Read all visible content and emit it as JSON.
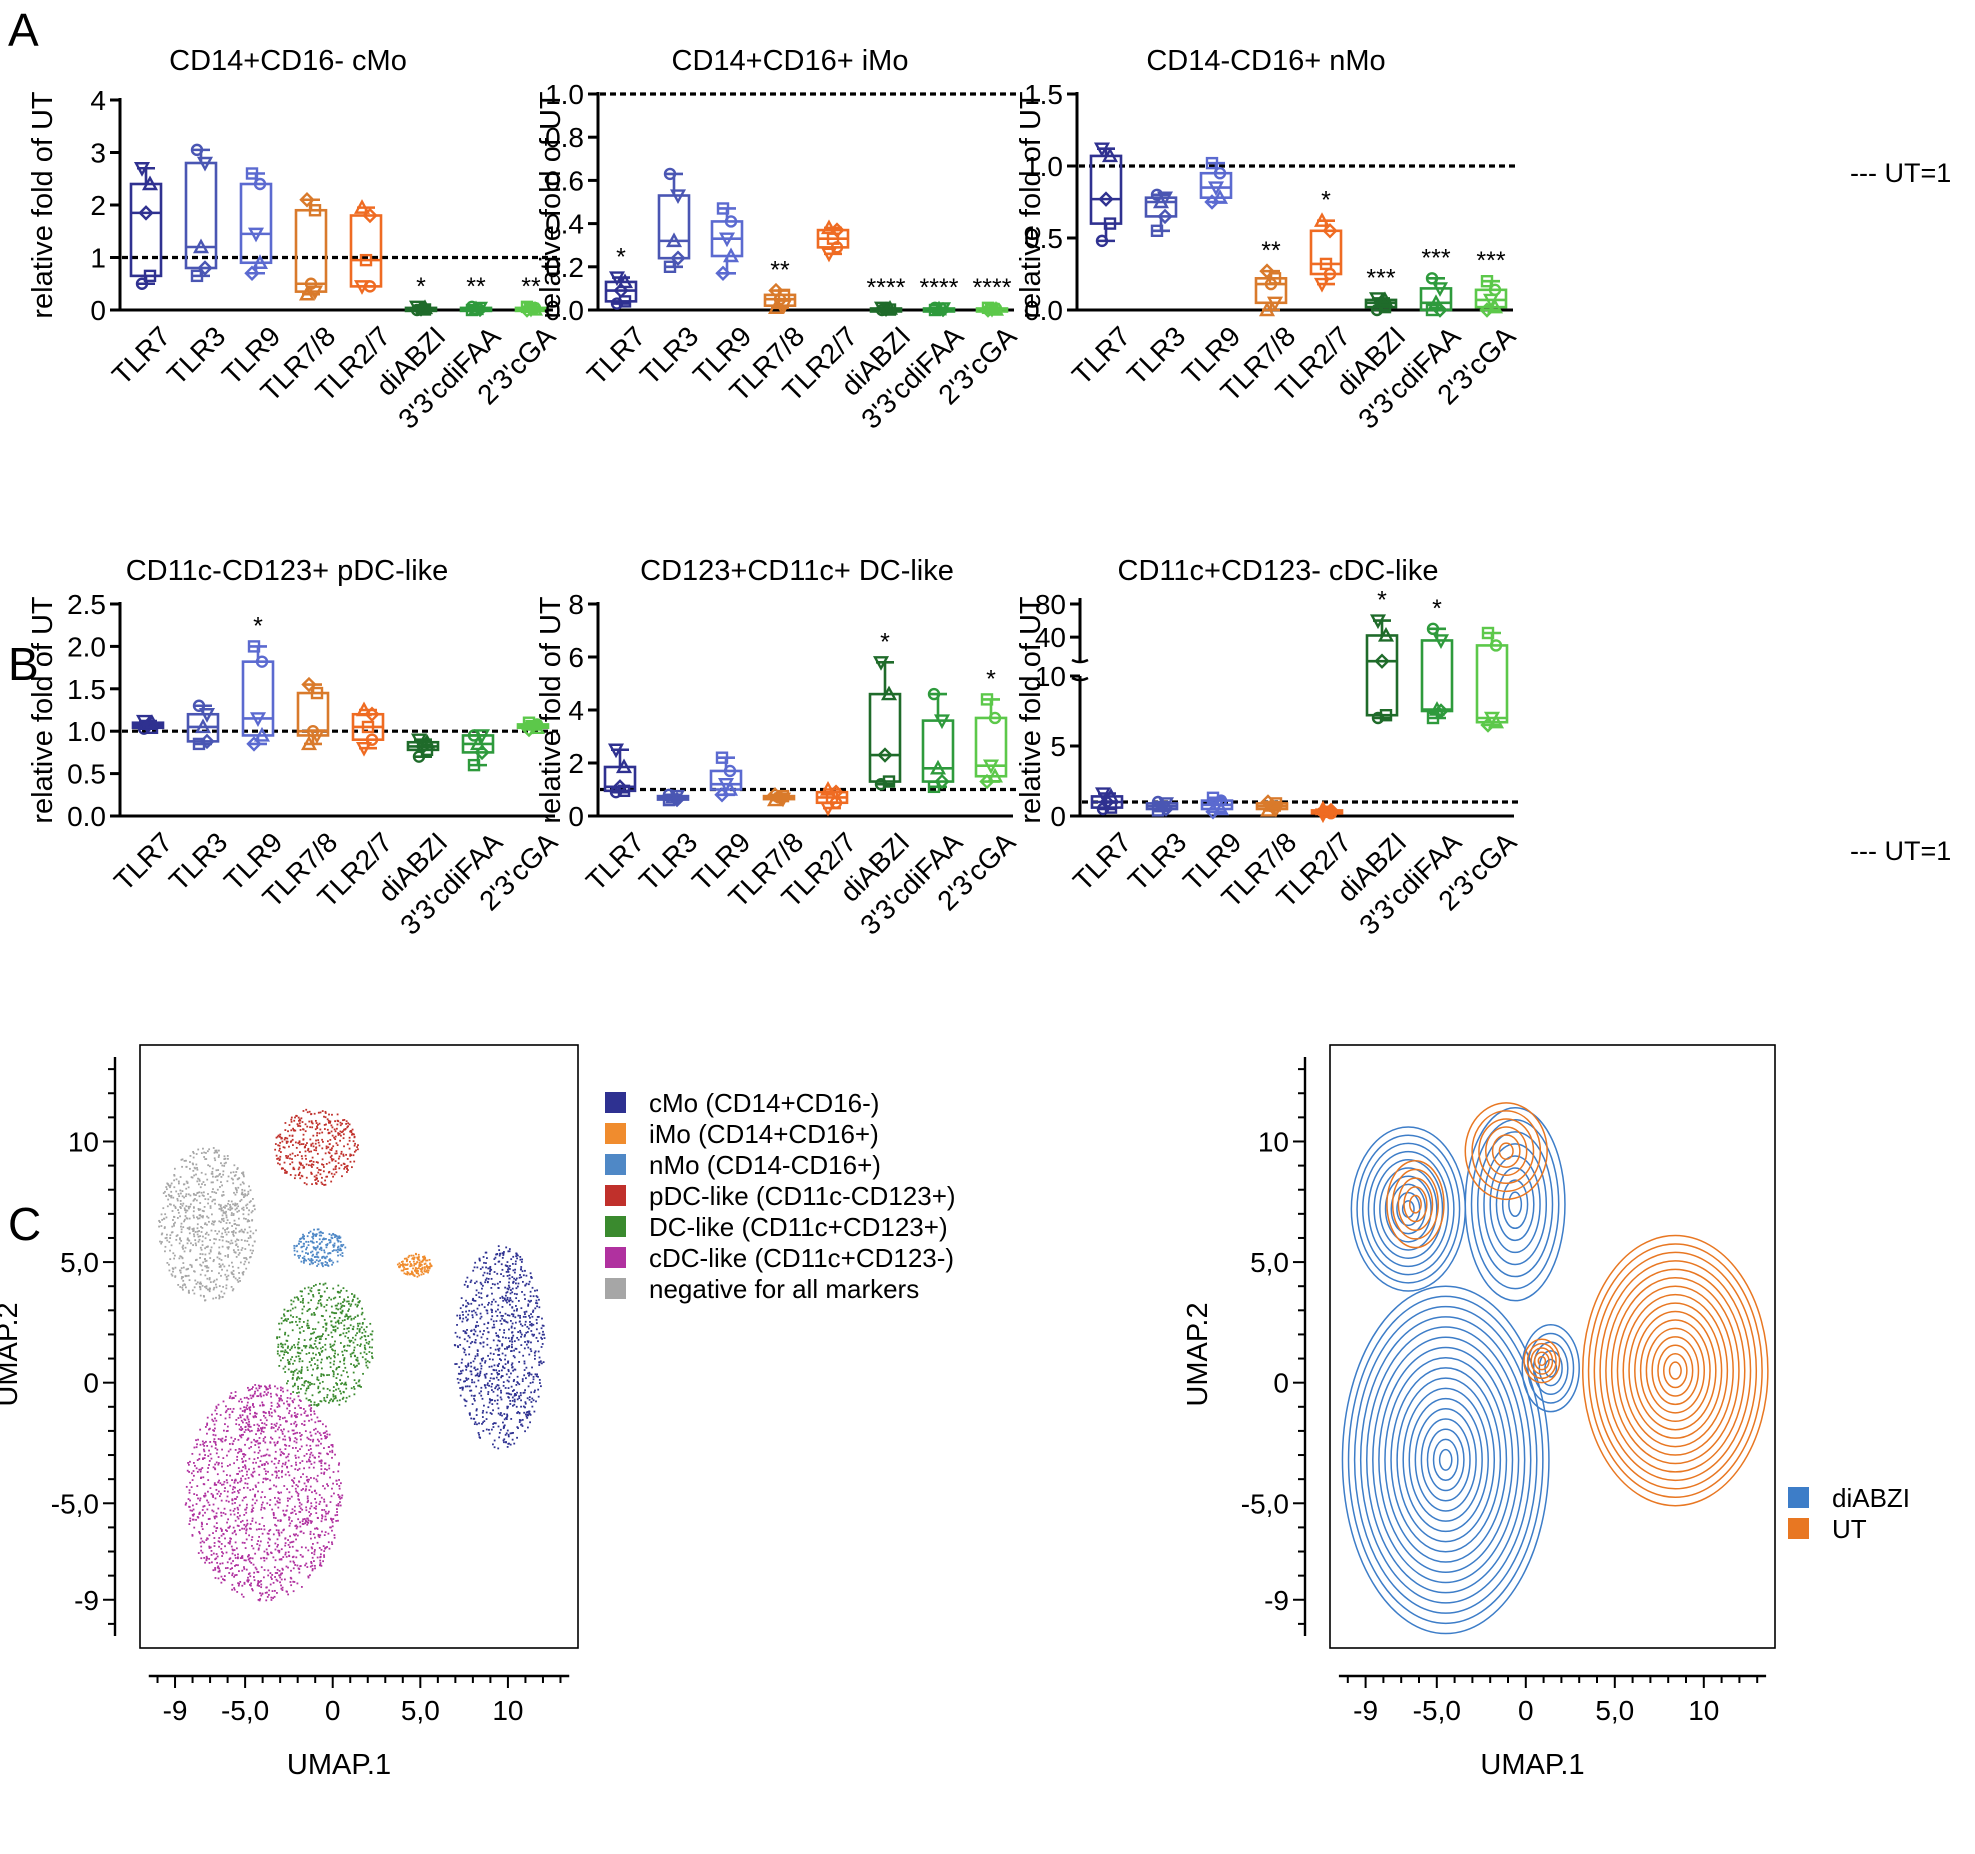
{
  "panel_labels": {
    "a": "A",
    "b": "B",
    "c": "C"
  },
  "ut_note": "--- UT=1",
  "ut_reference_value": 1,
  "colors": {
    "TLR7": "#2f3190",
    "TLR3": "#4a56b3",
    "TLR9": "#5b6ad0",
    "TLR7/8": "#d97a2b",
    "TLR2/7": "#ef6b22",
    "diABZI": "#1f6b2a",
    "3'3'cdiFAA": "#2e9a3c",
    "2'3'cGA": "#5cc84a",
    "cMo": "#2e3191",
    "iMo": "#f08c2e",
    "nMo": "#4f88c6",
    "pDC": "#c0302b",
    "DC": "#3a8a2e",
    "cDC": "#b0319f",
    "neg": "#a6a6a6",
    "contour_diABZI": "#3d7dc8",
    "contour_UT": "#e87722"
  },
  "chart_data": [
    {
      "id": "a1",
      "type": "box",
      "title": "CD14+CD16- cMo",
      "ylabel": "relative fold of UT",
      "categories": [
        "TLR7",
        "TLR3",
        "TLR9",
        "TLR7/8",
        "TLR2/7",
        "diABZI",
        "3'3'cdiFAA",
        "2'3'cGA"
      ],
      "ylim": [
        0,
        4
      ],
      "yticks": [
        "0",
        "1",
        "2",
        "3",
        "4"
      ],
      "boxes": [
        {
          "min": 0.5,
          "q1": 0.65,
          "median": 1.85,
          "q3": 2.4,
          "max": 2.7
        },
        {
          "min": 0.65,
          "q1": 0.8,
          "median": 1.2,
          "q3": 2.8,
          "max": 3.05
        },
        {
          "min": 0.7,
          "q1": 0.9,
          "median": 1.45,
          "q3": 2.4,
          "max": 2.6
        },
        {
          "min": 0.3,
          "q1": 0.35,
          "median": 0.5,
          "q3": 1.9,
          "max": 2.1
        },
        {
          "min": 0.45,
          "q1": 0.45,
          "median": 0.95,
          "q3": 1.8,
          "max": 1.95
        },
        {
          "min": 0.0,
          "q1": 0.01,
          "median": 0.02,
          "q3": 0.04,
          "max": 0.06
        },
        {
          "min": 0.0,
          "q1": 0.01,
          "median": 0.02,
          "q3": 0.04,
          "max": 0.06
        },
        {
          "min": 0.0,
          "q1": 0.01,
          "median": 0.02,
          "q3": 0.04,
          "max": 0.06
        }
      ],
      "significance": [
        "",
        "",
        "",
        "",
        "",
        "*",
        "**",
        "**"
      ]
    },
    {
      "id": "a2",
      "type": "box",
      "title": "CD14+CD16+ iMo",
      "ylabel": "relative fold of UT",
      "categories": [
        "TLR7",
        "TLR3",
        "TLR9",
        "TLR7/8",
        "TLR2/7",
        "diABZI",
        "3'3'cdiFAA",
        "2'3'cGA"
      ],
      "ylim": [
        0,
        1.0
      ],
      "yticks": [
        "0.0",
        "0.2",
        "0.4",
        "0.6",
        "0.8",
        "1.0"
      ],
      "boxes": [
        {
          "min": 0.03,
          "q1": 0.04,
          "median": 0.09,
          "q3": 0.13,
          "max": 0.15
        },
        {
          "min": 0.2,
          "q1": 0.24,
          "median": 0.32,
          "q3": 0.53,
          "max": 0.63
        },
        {
          "min": 0.17,
          "q1": 0.25,
          "median": 0.33,
          "q3": 0.41,
          "max": 0.47
        },
        {
          "min": 0.01,
          "q1": 0.02,
          "median": 0.05,
          "q3": 0.07,
          "max": 0.09
        },
        {
          "min": 0.26,
          "q1": 0.29,
          "median": 0.33,
          "q3": 0.37,
          "max": 0.38
        },
        {
          "min": 0.0,
          "q1": 0.002,
          "median": 0.004,
          "q3": 0.007,
          "max": 0.01
        },
        {
          "min": 0.0,
          "q1": 0.002,
          "median": 0.004,
          "q3": 0.007,
          "max": 0.01
        },
        {
          "min": 0.0,
          "q1": 0.002,
          "median": 0.004,
          "q3": 0.007,
          "max": 0.01
        }
      ],
      "significance": [
        "*",
        "",
        "",
        "**",
        "",
        "****",
        "****",
        "****"
      ]
    },
    {
      "id": "a3",
      "type": "box",
      "title": "CD14-CD16+ nMo",
      "ylabel": "relative fold of UT",
      "categories": [
        "TLR7",
        "TLR3",
        "TLR9",
        "TLR7/8",
        "TLR2/7",
        "diABZI",
        "3'3'cdiFAA",
        "2'3'cGA"
      ],
      "ylim": [
        0,
        1.5
      ],
      "yticks": [
        "0.0",
        "0.5",
        "1.0",
        "1.5"
      ],
      "boxes": [
        {
          "min": 0.48,
          "q1": 0.6,
          "median": 0.77,
          "q3": 1.07,
          "max": 1.12
        },
        {
          "min": 0.55,
          "q1": 0.65,
          "median": 0.75,
          "q3": 0.78,
          "max": 0.8
        },
        {
          "min": 0.75,
          "q1": 0.78,
          "median": 0.85,
          "q3": 0.95,
          "max": 1.02
        },
        {
          "min": 0.0,
          "q1": 0.05,
          "median": 0.18,
          "q3": 0.22,
          "max": 0.27
        },
        {
          "min": 0.18,
          "q1": 0.25,
          "median": 0.32,
          "q3": 0.55,
          "max": 0.62
        },
        {
          "min": 0.0,
          "q1": 0.02,
          "median": 0.05,
          "q3": 0.07,
          "max": 0.08
        },
        {
          "min": 0.0,
          "q1": 0.0,
          "median": 0.05,
          "q3": 0.15,
          "max": 0.22
        },
        {
          "min": 0.0,
          "q1": 0.02,
          "median": 0.07,
          "q3": 0.14,
          "max": 0.2
        }
      ],
      "significance": [
        "",
        "",
        "",
        "**",
        "*",
        "***",
        "***",
        "***"
      ]
    },
    {
      "id": "b1",
      "type": "box",
      "title": "CD11c-CD123+ pDC-like",
      "ylabel": "relative fold of UT",
      "categories": [
        "TLR7",
        "TLR3",
        "TLR9",
        "TLR7/8",
        "TLR2/7",
        "diABZI",
        "3'3'cdiFAA",
        "2'3'cGA"
      ],
      "ylim": [
        0,
        2.5
      ],
      "yticks": [
        "0.0",
        "0.5",
        "1.0",
        "1.5",
        "2.0",
        "2.5"
      ],
      "boxes": [
        {
          "min": 1.03,
          "q1": 1.04,
          "median": 1.07,
          "q3": 1.1,
          "max": 1.12
        },
        {
          "min": 0.85,
          "q1": 0.88,
          "median": 1.05,
          "q3": 1.2,
          "max": 1.3
        },
        {
          "min": 0.85,
          "q1": 0.95,
          "median": 1.15,
          "q3": 1.82,
          "max": 2.0
        },
        {
          "min": 0.85,
          "q1": 0.95,
          "median": 1.0,
          "q3": 1.45,
          "max": 1.55
        },
        {
          "min": 0.8,
          "q1": 0.9,
          "median": 1.05,
          "q3": 1.2,
          "max": 1.25
        },
        {
          "min": 0.7,
          "q1": 0.78,
          "median": 0.82,
          "q3": 0.87,
          "max": 0.9
        },
        {
          "min": 0.6,
          "q1": 0.75,
          "median": 0.85,
          "q3": 0.95,
          "max": 0.95
        },
        {
          "min": 1.02,
          "q1": 1.04,
          "median": 1.06,
          "q3": 1.08,
          "max": 1.1
        }
      ],
      "significance": [
        "",
        "",
        "*",
        "",
        "",
        "",
        "",
        ""
      ]
    },
    {
      "id": "b2",
      "type": "box",
      "title": "CD123+CD11c+ DC-like",
      "ylabel": "relative fold of UT",
      "categories": [
        "TLR7",
        "TLR3",
        "TLR9",
        "TLR7/8",
        "TLR2/7",
        "diABZI",
        "3'3'cdiFAA",
        "2'3'cGA"
      ],
      "ylim": [
        0,
        8
      ],
      "yticks": [
        "0",
        "2",
        "4",
        "6",
        "8"
      ],
      "boxes": [
        {
          "min": 0.9,
          "q1": 0.95,
          "median": 1.1,
          "q3": 1.85,
          "max": 2.5
        },
        {
          "min": 0.6,
          "q1": 0.62,
          "median": 0.7,
          "q3": 0.75,
          "max": 0.8
        },
        {
          "min": 0.8,
          "q1": 1.0,
          "median": 1.2,
          "q3": 1.7,
          "max": 2.2
        },
        {
          "min": 0.6,
          "q1": 0.65,
          "median": 0.7,
          "q3": 0.75,
          "max": 0.8
        },
        {
          "min": 0.3,
          "q1": 0.5,
          "median": 0.7,
          "q3": 0.9,
          "max": 1.0
        },
        {
          "min": 1.2,
          "q1": 1.3,
          "median": 2.3,
          "q3": 4.6,
          "max": 5.8
        },
        {
          "min": 1.1,
          "q1": 1.3,
          "median": 1.8,
          "q3": 3.6,
          "max": 4.6
        },
        {
          "min": 1.3,
          "q1": 1.5,
          "median": 1.9,
          "q3": 3.7,
          "max": 4.4
        }
      ],
      "significance": [
        "",
        "",
        "",
        "",
        "",
        "*",
        "",
        "*"
      ]
    },
    {
      "id": "b3",
      "type": "box",
      "title": "CD11c+CD123- cDC-like",
      "ylabel": "relative fold of UT",
      "categories": [
        "TLR7",
        "TLR3",
        "TLR9",
        "TLR7/8",
        "TLR2/7",
        "diABZI",
        "3'3'cdiFAA",
        "2'3'cGA"
      ],
      "y_axis_broken": true,
      "ylim_lower": [
        0,
        10
      ],
      "ylim_upper": [
        10,
        80
      ],
      "yticks": [
        "0",
        "5",
        "10",
        "40",
        "80"
      ],
      "boxes": [
        {
          "min": 0.5,
          "q1": 0.6,
          "median": 1.0,
          "q3": 1.4,
          "max": 1.6
        },
        {
          "min": 0.4,
          "q1": 0.5,
          "median": 0.7,
          "q3": 0.9,
          "max": 1.0
        },
        {
          "min": 0.3,
          "q1": 0.5,
          "median": 0.8,
          "q3": 1.1,
          "max": 1.3
        },
        {
          "min": 0.4,
          "q1": 0.5,
          "median": 0.7,
          "q3": 0.9,
          "max": 1.0
        },
        {
          "min": 0.1,
          "q1": 0.2,
          "median": 0.3,
          "q3": 0.4,
          "max": 0.5
        },
        {
          "min": 7.0,
          "q1": 7.2,
          "median": 11.0,
          "q3": 42.0,
          "max": 60.0
        },
        {
          "min": 7.0,
          "q1": 7.5,
          "median": 7.6,
          "q3": 36.0,
          "max": 50.0
        },
        {
          "min": 6.5,
          "q1": 6.7,
          "median": 7.0,
          "q3": 30.0,
          "max": 45.0
        }
      ],
      "significance": [
        "",
        "",
        "",
        "",
        "",
        "*",
        "*",
        ""
      ]
    },
    {
      "id": "c1",
      "type": "scatter",
      "title": "",
      "xlabel": "UMAP.1",
      "ylabel": "UMAP.2",
      "xlim": [
        -11,
        14
      ],
      "ylim": [
        -11,
        14
      ],
      "xticks": [
        {
          "v": -9,
          "label": "-9"
        },
        {
          "v": -5,
          "label": "-5,0"
        },
        {
          "v": 0,
          "label": "0"
        },
        {
          "v": 5,
          "label": "5,0"
        },
        {
          "v": 10,
          "label": "10"
        }
      ],
      "yticks": [
        {
          "v": 10,
          "label": "10"
        },
        {
          "v": 5,
          "label": "5,0"
        },
        {
          "v": 0,
          "label": "0"
        },
        {
          "v": -5,
          "label": "-5,0"
        },
        {
          "v": -9,
          "label": "-9"
        }
      ],
      "legend": [
        {
          "key": "cMo",
          "label": "cMo (CD14+CD16-)"
        },
        {
          "key": "iMo",
          "label": "iMo (CD14+CD16+)"
        },
        {
          "key": "nMo",
          "label": "nMo (CD14-CD16+)"
        },
        {
          "key": "pDC",
          "label": "pDC-like (CD11c-CD123+)"
        },
        {
          "key": "DC",
          "label": "DC-like (CD11c+CD123+)"
        },
        {
          "key": "cDC",
          "label": "cDC-like (CD11c+CD123-)"
        },
        {
          "key": "neg",
          "label": "negative for all markers"
        }
      ],
      "clusters": [
        {
          "key": "neg",
          "cx": -7.2,
          "cy": 6.6,
          "rx": 2.8,
          "ry": 3.2
        },
        {
          "key": "pDC",
          "cx": -1.0,
          "cy": 9.8,
          "rx": 2.4,
          "ry": 1.6
        },
        {
          "key": "nMo",
          "cx": -0.8,
          "cy": 5.6,
          "rx": 1.5,
          "ry": 0.8
        },
        {
          "key": "iMo",
          "cx": 4.6,
          "cy": 4.9,
          "rx": 1.0,
          "ry": 0.5
        },
        {
          "key": "DC",
          "cx": -0.5,
          "cy": 1.6,
          "rx": 2.8,
          "ry": 2.6
        },
        {
          "key": "cMo",
          "cx": 9.5,
          "cy": 1.5,
          "rx": 2.6,
          "ry": 4.2
        },
        {
          "key": "cDC",
          "cx": -4.0,
          "cy": -4.5,
          "rx": 4.5,
          "ry": 4.5
        }
      ]
    },
    {
      "id": "c2",
      "type": "contour",
      "title": "",
      "xlabel": "UMAP.1",
      "ylabel": "UMAP.2",
      "xlim": [
        -11,
        14
      ],
      "ylim": [
        -11,
        14
      ],
      "xticks": [
        {
          "v": -9,
          "label": "-9"
        },
        {
          "v": -5,
          "label": "-5,0"
        },
        {
          "v": 0,
          "label": "0"
        },
        {
          "v": 5,
          "label": "5,0"
        },
        {
          "v": 10,
          "label": "10"
        }
      ],
      "yticks": [
        {
          "v": 10,
          "label": "10"
        },
        {
          "v": 5,
          "label": "5,0"
        },
        {
          "v": 0,
          "label": "0"
        },
        {
          "v": -5,
          "label": "-5,0"
        },
        {
          "v": -9,
          "label": "-9"
        }
      ],
      "legend": [
        {
          "key": "contour_diABZI",
          "label": "diABZI"
        },
        {
          "key": "contour_UT",
          "label": "UT"
        }
      ],
      "series": [
        {
          "name": "diABZI",
          "key": "contour_diABZI",
          "regions": [
            {
              "cx": -4.5,
              "cy": -3.2,
              "rx": 5.8,
              "ry": 7.2
            },
            {
              "cx": -6.6,
              "cy": 7.2,
              "rx": 3.2,
              "ry": 3.4
            },
            {
              "cx": -0.6,
              "cy": 7.4,
              "rx": 2.8,
              "ry": 4.0
            },
            {
              "cx": 1.4,
              "cy": 0.6,
              "rx": 1.6,
              "ry": 1.8
            }
          ]
        },
        {
          "name": "UT",
          "key": "contour_UT",
          "regions": [
            {
              "cx": 8.4,
              "cy": 0.5,
              "rx": 5.2,
              "ry": 5.6
            },
            {
              "cx": -1.1,
              "cy": 9.6,
              "rx": 2.3,
              "ry": 2.0
            },
            {
              "cx": -6.2,
              "cy": 7.4,
              "rx": 1.6,
              "ry": 1.8
            },
            {
              "cx": 0.9,
              "cy": 0.9,
              "rx": 1.0,
              "ry": 0.9
            }
          ]
        }
      ]
    }
  ]
}
